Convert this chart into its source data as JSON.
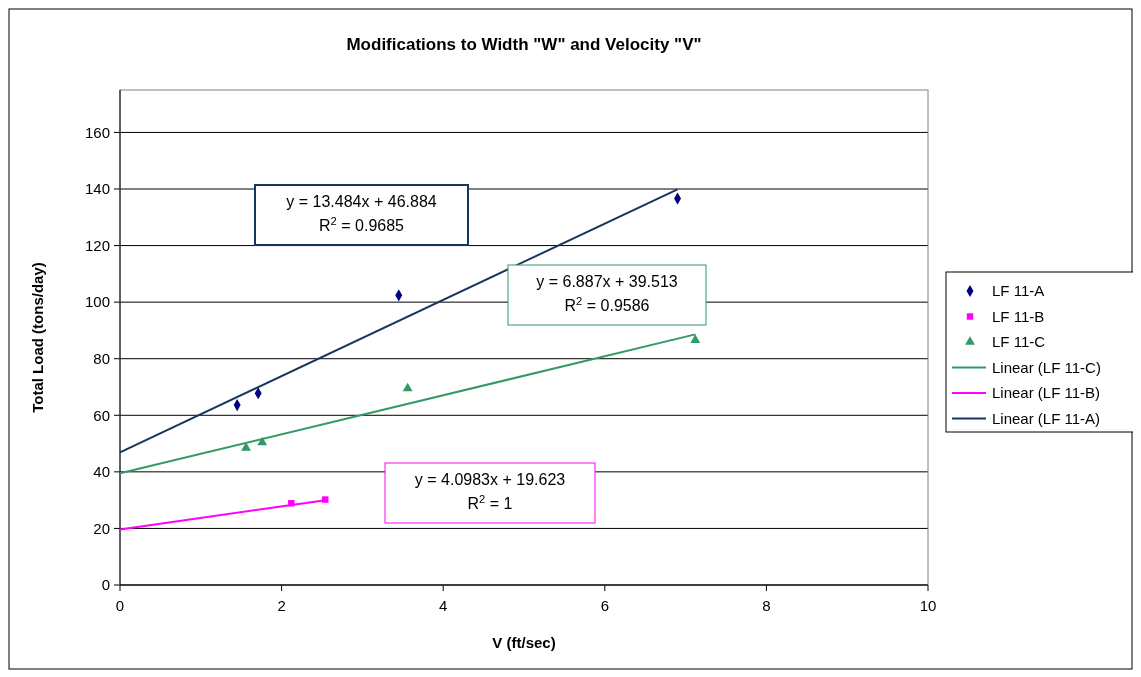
{
  "chart_data": {
    "type": "scatter",
    "title": "Modifications to Width \"W\" and Velocity \"V\"",
    "xlabel": "V (ft/sec)",
    "ylabel": "Total Load (tons/day)",
    "xlim": [
      0,
      10
    ],
    "xticks": [
      0,
      2,
      4,
      6,
      8,
      10
    ],
    "ylim": [
      0,
      175
    ],
    "yticks": [
      0,
      20,
      40,
      60,
      80,
      100,
      120,
      140,
      160
    ],
    "grid": "y",
    "legend": "right",
    "series": [
      {
        "name": "LF 11-A",
        "color": "#000080",
        "marker": "diamond",
        "x": [
          1.45,
          1.71,
          3.45,
          6.9
        ],
        "values": [
          63.6,
          67.8,
          102.4,
          136.6
        ]
      },
      {
        "name": "LF 11-B",
        "color": "#ff00ff",
        "marker": "square",
        "x": [
          2.12,
          2.54
        ],
        "values": [
          28.9,
          30.2
        ]
      },
      {
        "name": "LF 11-C",
        "color": "#339966",
        "marker": "triangle",
        "x": [
          1.56,
          1.76,
          3.56,
          7.12
        ],
        "values": [
          48.5,
          50.4,
          69.5,
          86.6
        ]
      },
      {
        "name": "Linear (LF 11-C)",
        "type": "line",
        "color": "#339966",
        "marker": "none",
        "x": [
          0,
          7.12
        ],
        "values": [
          39.5,
          88.6
        ]
      },
      {
        "name": "Linear (LF 11-B)",
        "type": "line",
        "color": "#ff00ff",
        "marker": "none",
        "x": [
          0,
          2.54
        ],
        "values": [
          19.6,
          30.0
        ]
      },
      {
        "name": "Linear (LF 11-A)",
        "type": "line",
        "color": "#17365d",
        "marker": "none",
        "x": [
          0,
          6.9
        ],
        "values": [
          46.9,
          139.9
        ]
      }
    ],
    "annotations": [
      "y = 13.484x + 46.884\nR$^{2}$ = 0.9685",
      "y = 6.887x + 39.513\nR$^{2}$ = 0.9586",
      "y = 4.0983x + 19.623\nR$^{2}$ = 1"
    ]
  }
}
